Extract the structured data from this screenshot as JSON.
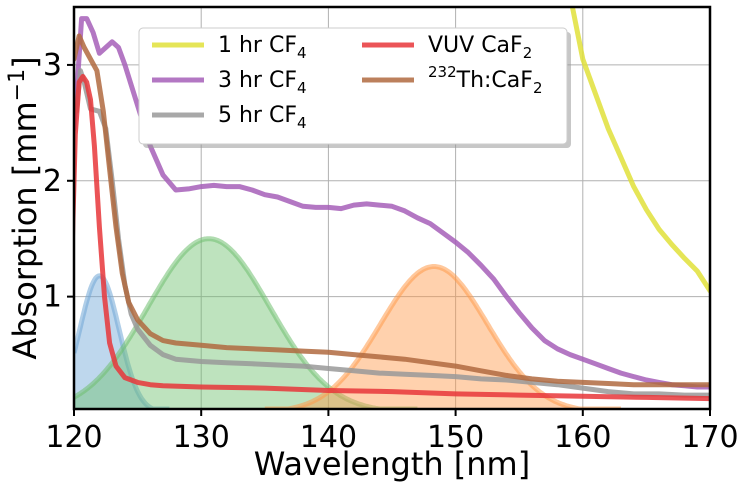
{
  "chart_data": {
    "type": "line",
    "xlabel": "Wavelength [nm]",
    "ylabel_main": "Absorption [mm",
    "ylabel_sup": "−1",
    "ylabel_close": "]",
    "xlim": [
      120,
      170
    ],
    "ylim": [
      0.03,
      3.5
    ],
    "x_ticks": [
      {
        "value": 120,
        "label": "120"
      },
      {
        "value": 130,
        "label": "130"
      },
      {
        "value": 140,
        "label": "140"
      },
      {
        "value": 150,
        "label": "150"
      },
      {
        "value": 160,
        "label": "160"
      },
      {
        "value": 170,
        "label": "170"
      }
    ],
    "y_ticks": [
      {
        "value": 1,
        "label": "1"
      },
      {
        "value": 2,
        "label": "2"
      },
      {
        "value": 3,
        "label": "3"
      }
    ],
    "grid": true,
    "legend_position": "top-left",
    "series": [
      {
        "id": "1hr",
        "legend": {
          "main": "1 hr CF",
          "sub": "4",
          "sup": ""
        },
        "color": "#e0e03a",
        "points": [
          [
            159.0,
            3.6
          ],
          [
            160.0,
            3.05
          ],
          [
            161.0,
            2.75
          ],
          [
            162.0,
            2.45
          ],
          [
            163.0,
            2.2
          ],
          [
            164.0,
            1.95
          ],
          [
            165.0,
            1.75
          ],
          [
            166.0,
            1.58
          ],
          [
            167.0,
            1.45
          ],
          [
            168.0,
            1.33
          ],
          [
            169.0,
            1.22
          ],
          [
            170.0,
            1.05
          ]
        ]
      },
      {
        "id": "3hr",
        "legend": {
          "main": "3 hr CF",
          "sub": "4",
          "sup": ""
        },
        "color": "#a65fb8",
        "points": [
          [
            120.0,
            2.45
          ],
          [
            120.3,
            2.9
          ],
          [
            120.6,
            3.4
          ],
          [
            121.0,
            3.4
          ],
          [
            121.5,
            3.28
          ],
          [
            122.0,
            3.1
          ],
          [
            122.5,
            3.15
          ],
          [
            123.0,
            3.2
          ],
          [
            123.5,
            3.15
          ],
          [
            124.0,
            3.0
          ],
          [
            125.0,
            2.65
          ],
          [
            126.0,
            2.3
          ],
          [
            127.0,
            2.05
          ],
          [
            128.0,
            1.92
          ],
          [
            129.0,
            1.93
          ],
          [
            130.0,
            1.95
          ],
          [
            131.0,
            1.96
          ],
          [
            132.0,
            1.95
          ],
          [
            133.0,
            1.95
          ],
          [
            134.0,
            1.92
          ],
          [
            135.0,
            1.88
          ],
          [
            136.0,
            1.86
          ],
          [
            137.0,
            1.82
          ],
          [
            138.0,
            1.78
          ],
          [
            139.0,
            1.77
          ],
          [
            140.0,
            1.77
          ],
          [
            141.0,
            1.76
          ],
          [
            142.0,
            1.79
          ],
          [
            143.0,
            1.8
          ],
          [
            144.0,
            1.79
          ],
          [
            145.0,
            1.78
          ],
          [
            146.0,
            1.74
          ],
          [
            147.0,
            1.68
          ],
          [
            148.0,
            1.63
          ],
          [
            149.0,
            1.55
          ],
          [
            150.0,
            1.47
          ],
          [
            151.0,
            1.38
          ],
          [
            152.0,
            1.27
          ],
          [
            153.0,
            1.15
          ],
          [
            154.0,
            1.0
          ],
          [
            155.0,
            0.86
          ],
          [
            156.0,
            0.73
          ],
          [
            157.0,
            0.62
          ],
          [
            158.0,
            0.55
          ],
          [
            159.0,
            0.5
          ],
          [
            160.0,
            0.46
          ],
          [
            161.0,
            0.42
          ],
          [
            162.0,
            0.38
          ],
          [
            163.0,
            0.34
          ],
          [
            164.0,
            0.31
          ],
          [
            165.0,
            0.28
          ],
          [
            166.0,
            0.26
          ],
          [
            167.0,
            0.24
          ],
          [
            168.0,
            0.23
          ],
          [
            169.0,
            0.22
          ],
          [
            170.0,
            0.22
          ]
        ]
      },
      {
        "id": "5hr",
        "legend": {
          "main": "5 hr CF",
          "sub": "4",
          "sup": ""
        },
        "color": "#999999",
        "points": [
          [
            120.2,
            2.6
          ],
          [
            120.5,
            2.95
          ],
          [
            120.8,
            2.85
          ],
          [
            121.3,
            2.62
          ],
          [
            122.0,
            2.6
          ],
          [
            122.5,
            2.45
          ],
          [
            123.0,
            2.0
          ],
          [
            123.5,
            1.5
          ],
          [
            124.0,
            1.1
          ],
          [
            124.5,
            0.85
          ],
          [
            125.0,
            0.72
          ],
          [
            126.0,
            0.58
          ],
          [
            127.0,
            0.5
          ],
          [
            128.0,
            0.46
          ],
          [
            130.0,
            0.44
          ],
          [
            132.0,
            0.43
          ],
          [
            134.0,
            0.42
          ],
          [
            136.0,
            0.41
          ],
          [
            138.0,
            0.4
          ],
          [
            140.0,
            0.38
          ],
          [
            142.0,
            0.36
          ],
          [
            144.0,
            0.34
          ],
          [
            146.0,
            0.33
          ],
          [
            148.0,
            0.32
          ],
          [
            150.0,
            0.31
          ],
          [
            152.0,
            0.29
          ],
          [
            154.0,
            0.28
          ],
          [
            156.0,
            0.26
          ],
          [
            158.0,
            0.24
          ],
          [
            160.0,
            0.21
          ],
          [
            162.0,
            0.18
          ],
          [
            164.0,
            0.16
          ],
          [
            166.0,
            0.16
          ],
          [
            168.0,
            0.15
          ],
          [
            170.0,
            0.15
          ]
        ]
      },
      {
        "id": "vuv",
        "legend": {
          "main": "VUV CaF",
          "sub": "2",
          "sup": ""
        },
        "color": "#e8363a",
        "points": [
          [
            119.8,
            1.2
          ],
          [
            120.1,
            2.4
          ],
          [
            120.4,
            2.85
          ],
          [
            120.7,
            2.9
          ],
          [
            121.0,
            2.85
          ],
          [
            121.3,
            2.7
          ],
          [
            121.6,
            2.3
          ],
          [
            122.0,
            1.6
          ],
          [
            122.4,
            1.0
          ],
          [
            122.8,
            0.6
          ],
          [
            123.3,
            0.4
          ],
          [
            124.0,
            0.3
          ],
          [
            125.0,
            0.26
          ],
          [
            126.0,
            0.24
          ],
          [
            127.0,
            0.23
          ],
          [
            130.0,
            0.22
          ],
          [
            135.0,
            0.21
          ],
          [
            140.0,
            0.19
          ],
          [
            145.0,
            0.18
          ],
          [
            150.0,
            0.16
          ],
          [
            155.0,
            0.15
          ],
          [
            160.0,
            0.14
          ],
          [
            165.0,
            0.13
          ],
          [
            170.0,
            0.12
          ]
        ]
      },
      {
        "id": "th",
        "legend": {
          "main": "Th:CaF",
          "sub": "2",
          "sup": "232"
        },
        "color": "#b06a40",
        "points": [
          [
            120.0,
            3.05
          ],
          [
            120.4,
            3.25
          ],
          [
            120.8,
            3.15
          ],
          [
            121.3,
            3.05
          ],
          [
            121.8,
            2.95
          ],
          [
            122.3,
            2.6
          ],
          [
            122.8,
            2.1
          ],
          [
            123.3,
            1.6
          ],
          [
            123.8,
            1.2
          ],
          [
            124.3,
            0.95
          ],
          [
            125.0,
            0.8
          ],
          [
            126.0,
            0.68
          ],
          [
            127.0,
            0.62
          ],
          [
            128.0,
            0.6
          ],
          [
            130.0,
            0.58
          ],
          [
            132.0,
            0.56
          ],
          [
            134.0,
            0.55
          ],
          [
            136.0,
            0.54
          ],
          [
            138.0,
            0.53
          ],
          [
            140.0,
            0.52
          ],
          [
            142.0,
            0.5
          ],
          [
            144.0,
            0.48
          ],
          [
            146.0,
            0.46
          ],
          [
            148.0,
            0.43
          ],
          [
            150.0,
            0.4
          ],
          [
            152.0,
            0.36
          ],
          [
            154.0,
            0.32
          ],
          [
            156.0,
            0.29
          ],
          [
            158.0,
            0.27
          ],
          [
            160.0,
            0.26
          ],
          [
            162.0,
            0.25
          ],
          [
            164.0,
            0.24
          ],
          [
            166.0,
            0.24
          ],
          [
            168.0,
            0.24
          ],
          [
            170.0,
            0.24
          ]
        ]
      }
    ],
    "filled_peaks": [
      {
        "id": "blue",
        "center": 122.0,
        "amplitude": 1.18,
        "sigma": 1.55,
        "from": 120,
        "to": 127.5,
        "color": "#6fa6d6"
      },
      {
        "id": "green",
        "center": 130.6,
        "amplitude": 1.5,
        "sigma": 4.8,
        "from": 120,
        "to": 147,
        "color": "#6fc06f"
      },
      {
        "id": "orange",
        "center": 148.3,
        "amplitude": 1.26,
        "sigma": 4.2,
        "from": 135,
        "to": 163,
        "color": "#ff9a4a"
      }
    ]
  }
}
